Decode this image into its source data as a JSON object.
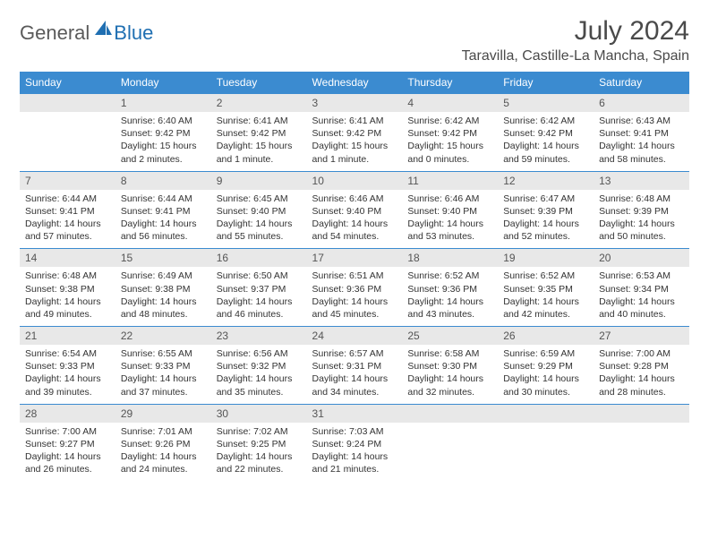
{
  "logo": {
    "general": "General",
    "blue": "Blue"
  },
  "title": "July 2024",
  "location": "Taravilla, Castille-La Mancha, Spain",
  "colors": {
    "header_bg": "#3b8bd0",
    "header_text": "#ffffff",
    "daynum_bg": "#e8e8e8",
    "border": "#3b8bd0",
    "logo_gray": "#5a5a5a",
    "logo_blue": "#1f6fb2"
  },
  "weekdays": [
    "Sunday",
    "Monday",
    "Tuesday",
    "Wednesday",
    "Thursday",
    "Friday",
    "Saturday"
  ],
  "weeks": [
    [
      {
        "n": "",
        "lines": []
      },
      {
        "n": "1",
        "lines": [
          "Sunrise: 6:40 AM",
          "Sunset: 9:42 PM",
          "Daylight: 15 hours",
          "and 2 minutes."
        ]
      },
      {
        "n": "2",
        "lines": [
          "Sunrise: 6:41 AM",
          "Sunset: 9:42 PM",
          "Daylight: 15 hours",
          "and 1 minute."
        ]
      },
      {
        "n": "3",
        "lines": [
          "Sunrise: 6:41 AM",
          "Sunset: 9:42 PM",
          "Daylight: 15 hours",
          "and 1 minute."
        ]
      },
      {
        "n": "4",
        "lines": [
          "Sunrise: 6:42 AM",
          "Sunset: 9:42 PM",
          "Daylight: 15 hours",
          "and 0 minutes."
        ]
      },
      {
        "n": "5",
        "lines": [
          "Sunrise: 6:42 AM",
          "Sunset: 9:42 PM",
          "Daylight: 14 hours",
          "and 59 minutes."
        ]
      },
      {
        "n": "6",
        "lines": [
          "Sunrise: 6:43 AM",
          "Sunset: 9:41 PM",
          "Daylight: 14 hours",
          "and 58 minutes."
        ]
      }
    ],
    [
      {
        "n": "7",
        "lines": [
          "Sunrise: 6:44 AM",
          "Sunset: 9:41 PM",
          "Daylight: 14 hours",
          "and 57 minutes."
        ]
      },
      {
        "n": "8",
        "lines": [
          "Sunrise: 6:44 AM",
          "Sunset: 9:41 PM",
          "Daylight: 14 hours",
          "and 56 minutes."
        ]
      },
      {
        "n": "9",
        "lines": [
          "Sunrise: 6:45 AM",
          "Sunset: 9:40 PM",
          "Daylight: 14 hours",
          "and 55 minutes."
        ]
      },
      {
        "n": "10",
        "lines": [
          "Sunrise: 6:46 AM",
          "Sunset: 9:40 PM",
          "Daylight: 14 hours",
          "and 54 minutes."
        ]
      },
      {
        "n": "11",
        "lines": [
          "Sunrise: 6:46 AM",
          "Sunset: 9:40 PM",
          "Daylight: 14 hours",
          "and 53 minutes."
        ]
      },
      {
        "n": "12",
        "lines": [
          "Sunrise: 6:47 AM",
          "Sunset: 9:39 PM",
          "Daylight: 14 hours",
          "and 52 minutes."
        ]
      },
      {
        "n": "13",
        "lines": [
          "Sunrise: 6:48 AM",
          "Sunset: 9:39 PM",
          "Daylight: 14 hours",
          "and 50 minutes."
        ]
      }
    ],
    [
      {
        "n": "14",
        "lines": [
          "Sunrise: 6:48 AM",
          "Sunset: 9:38 PM",
          "Daylight: 14 hours",
          "and 49 minutes."
        ]
      },
      {
        "n": "15",
        "lines": [
          "Sunrise: 6:49 AM",
          "Sunset: 9:38 PM",
          "Daylight: 14 hours",
          "and 48 minutes."
        ]
      },
      {
        "n": "16",
        "lines": [
          "Sunrise: 6:50 AM",
          "Sunset: 9:37 PM",
          "Daylight: 14 hours",
          "and 46 minutes."
        ]
      },
      {
        "n": "17",
        "lines": [
          "Sunrise: 6:51 AM",
          "Sunset: 9:36 PM",
          "Daylight: 14 hours",
          "and 45 minutes."
        ]
      },
      {
        "n": "18",
        "lines": [
          "Sunrise: 6:52 AM",
          "Sunset: 9:36 PM",
          "Daylight: 14 hours",
          "and 43 minutes."
        ]
      },
      {
        "n": "19",
        "lines": [
          "Sunrise: 6:52 AM",
          "Sunset: 9:35 PM",
          "Daylight: 14 hours",
          "and 42 minutes."
        ]
      },
      {
        "n": "20",
        "lines": [
          "Sunrise: 6:53 AM",
          "Sunset: 9:34 PM",
          "Daylight: 14 hours",
          "and 40 minutes."
        ]
      }
    ],
    [
      {
        "n": "21",
        "lines": [
          "Sunrise: 6:54 AM",
          "Sunset: 9:33 PM",
          "Daylight: 14 hours",
          "and 39 minutes."
        ]
      },
      {
        "n": "22",
        "lines": [
          "Sunrise: 6:55 AM",
          "Sunset: 9:33 PM",
          "Daylight: 14 hours",
          "and 37 minutes."
        ]
      },
      {
        "n": "23",
        "lines": [
          "Sunrise: 6:56 AM",
          "Sunset: 9:32 PM",
          "Daylight: 14 hours",
          "and 35 minutes."
        ]
      },
      {
        "n": "24",
        "lines": [
          "Sunrise: 6:57 AM",
          "Sunset: 9:31 PM",
          "Daylight: 14 hours",
          "and 34 minutes."
        ]
      },
      {
        "n": "25",
        "lines": [
          "Sunrise: 6:58 AM",
          "Sunset: 9:30 PM",
          "Daylight: 14 hours",
          "and 32 minutes."
        ]
      },
      {
        "n": "26",
        "lines": [
          "Sunrise: 6:59 AM",
          "Sunset: 9:29 PM",
          "Daylight: 14 hours",
          "and 30 minutes."
        ]
      },
      {
        "n": "27",
        "lines": [
          "Sunrise: 7:00 AM",
          "Sunset: 9:28 PM",
          "Daylight: 14 hours",
          "and 28 minutes."
        ]
      }
    ],
    [
      {
        "n": "28",
        "lines": [
          "Sunrise: 7:00 AM",
          "Sunset: 9:27 PM",
          "Daylight: 14 hours",
          "and 26 minutes."
        ]
      },
      {
        "n": "29",
        "lines": [
          "Sunrise: 7:01 AM",
          "Sunset: 9:26 PM",
          "Daylight: 14 hours",
          "and 24 minutes."
        ]
      },
      {
        "n": "30",
        "lines": [
          "Sunrise: 7:02 AM",
          "Sunset: 9:25 PM",
          "Daylight: 14 hours",
          "and 22 minutes."
        ]
      },
      {
        "n": "31",
        "lines": [
          "Sunrise: 7:03 AM",
          "Sunset: 9:24 PM",
          "Daylight: 14 hours",
          "and 21 minutes."
        ]
      },
      {
        "n": "",
        "lines": []
      },
      {
        "n": "",
        "lines": []
      },
      {
        "n": "",
        "lines": []
      }
    ]
  ]
}
